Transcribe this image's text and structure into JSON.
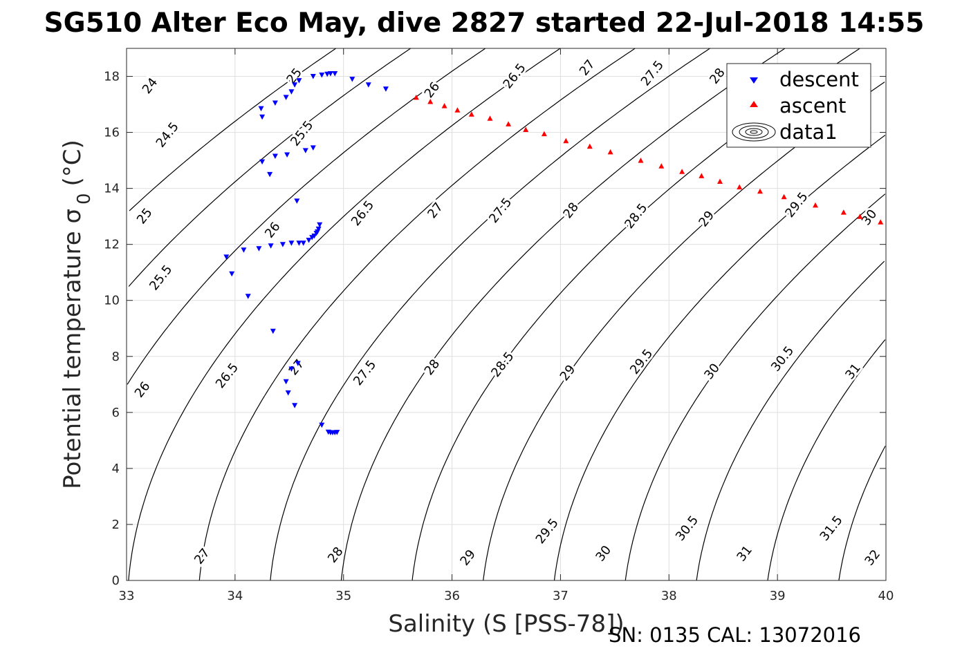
{
  "chart_data": {
    "type": "scatter",
    "title": "SG510 Alter Eco May, dive 2827 started 22-Jul-2018 14:55",
    "xlabel": "Salinity (S [PSS-78])",
    "ylabel": "Potential temperature σ 0 (°C)",
    "ylabel_parts": {
      "main": "Potential temperature σ",
      "sub": "0",
      "unit": "(°C)"
    },
    "footer": "SN: 0135  CAL: 13072016",
    "xlim": [
      33,
      40
    ],
    "ylim": [
      0,
      19
    ],
    "xticks": [
      33,
      34,
      35,
      36,
      37,
      38,
      39,
      40
    ],
    "yticks": [
      0,
      2,
      4,
      6,
      8,
      10,
      12,
      14,
      16,
      18
    ],
    "grid": true,
    "legend_position": "top-right",
    "legend": [
      {
        "label": "descent",
        "marker": "triangle-down",
        "color": "#0000ff"
      },
      {
        "label": "ascent",
        "marker": "triangle-up",
        "color": "#ff0000"
      },
      {
        "label": "data1",
        "marker": "contour",
        "color": "#000000"
      }
    ],
    "contour_levels": [
      24,
      24.5,
      25,
      25.5,
      26,
      26.5,
      27,
      27.5,
      28,
      28.5,
      29,
      29.5,
      30,
      30.5,
      31,
      31.5,
      32
    ],
    "contour_labels": [
      {
        "text": "24",
        "x": 33.22,
        "y": 17.65
      },
      {
        "text": "24.5",
        "x": 33.38,
        "y": 15.9
      },
      {
        "text": "25",
        "x": 33.17,
        "y": 13.0
      },
      {
        "text": "25",
        "x": 34.55,
        "y": 18.0
      },
      {
        "text": "25.5",
        "x": 33.32,
        "y": 10.8
      },
      {
        "text": "25.5",
        "x": 34.62,
        "y": 15.95
      },
      {
        "text": "26",
        "x": 33.15,
        "y": 6.8
      },
      {
        "text": "26",
        "x": 34.35,
        "y": 12.5
      },
      {
        "text": "26",
        "x": 35.82,
        "y": 17.5
      },
      {
        "text": "26.5",
        "x": 33.93,
        "y": 7.3
      },
      {
        "text": "26.5",
        "x": 35.18,
        "y": 13.1
      },
      {
        "text": "26.5",
        "x": 36.58,
        "y": 18.0
      },
      {
        "text": "27",
        "x": 33.7,
        "y": 0.85
      },
      {
        "text": "27",
        "x": 34.57,
        "y": 7.6
      },
      {
        "text": "27",
        "x": 35.85,
        "y": 13.2
      },
      {
        "text": "27",
        "x": 37.25,
        "y": 18.3
      },
      {
        "text": "27.5",
        "x": 35.2,
        "y": 7.4
      },
      {
        "text": "27.5",
        "x": 36.45,
        "y": 13.2
      },
      {
        "text": "27.5",
        "x": 37.85,
        "y": 18.1
      },
      {
        "text": "28",
        "x": 34.93,
        "y": 0.9
      },
      {
        "text": "28",
        "x": 35.82,
        "y": 7.6
      },
      {
        "text": "28",
        "x": 37.1,
        "y": 13.2
      },
      {
        "text": "28",
        "x": 38.45,
        "y": 18.0
      },
      {
        "text": "28.5",
        "x": 36.47,
        "y": 7.7
      },
      {
        "text": "28.5",
        "x": 37.7,
        "y": 13.0
      },
      {
        "text": "29",
        "x": 36.15,
        "y": 0.8
      },
      {
        "text": "29",
        "x": 37.07,
        "y": 7.4
      },
      {
        "text": "29",
        "x": 38.35,
        "y": 12.9
      },
      {
        "text": "29.5",
        "x": 36.88,
        "y": 1.75
      },
      {
        "text": "29.5",
        "x": 37.75,
        "y": 7.8
      },
      {
        "text": "29.5",
        "x": 39.18,
        "y": 13.4
      },
      {
        "text": "30",
        "x": 37.4,
        "y": 0.95
      },
      {
        "text": "30",
        "x": 38.4,
        "y": 7.45
      },
      {
        "text": "30",
        "x": 39.85,
        "y": 12.95
      },
      {
        "text": "30.5",
        "x": 38.17,
        "y": 1.85
      },
      {
        "text": "30.5",
        "x": 39.05,
        "y": 7.9
      },
      {
        "text": "31",
        "x": 38.7,
        "y": 0.95
      },
      {
        "text": "31",
        "x": 39.7,
        "y": 7.45
      },
      {
        "text": "31.5",
        "x": 39.5,
        "y": 1.85
      },
      {
        "text": "32",
        "x": 39.88,
        "y": 0.8
      }
    ],
    "series": [
      {
        "name": "descent",
        "marker": "triangle-down",
        "color": "#0000ff",
        "points": [
          [
            34.55,
            17.7
          ],
          [
            34.59,
            17.85
          ],
          [
            34.72,
            18.0
          ],
          [
            34.8,
            18.05
          ],
          [
            34.85,
            18.08
          ],
          [
            34.88,
            18.1
          ],
          [
            34.92,
            18.1
          ],
          [
            35.08,
            17.9
          ],
          [
            35.23,
            17.7
          ],
          [
            35.39,
            17.55
          ],
          [
            34.52,
            17.45
          ],
          [
            34.47,
            17.25
          ],
          [
            34.37,
            17.05
          ],
          [
            34.24,
            16.85
          ],
          [
            34.25,
            16.55
          ],
          [
            34.72,
            15.45
          ],
          [
            34.65,
            15.35
          ],
          [
            34.48,
            15.2
          ],
          [
            34.37,
            15.15
          ],
          [
            34.25,
            14.95
          ],
          [
            34.32,
            14.5
          ],
          [
            34.57,
            13.55
          ],
          [
            34.78,
            12.7
          ],
          [
            34.77,
            12.55
          ],
          [
            34.76,
            12.45
          ],
          [
            34.75,
            12.4
          ],
          [
            34.73,
            12.3
          ],
          [
            34.71,
            12.25
          ],
          [
            34.68,
            12.15
          ],
          [
            34.63,
            12.05
          ],
          [
            34.59,
            12.05
          ],
          [
            34.52,
            12.05
          ],
          [
            34.44,
            12.0
          ],
          [
            34.33,
            11.95
          ],
          [
            34.22,
            11.85
          ],
          [
            34.08,
            11.8
          ],
          [
            33.92,
            11.55
          ],
          [
            33.97,
            10.95
          ],
          [
            34.12,
            10.15
          ],
          [
            34.35,
            8.9
          ],
          [
            34.58,
            7.75
          ],
          [
            34.52,
            7.55
          ],
          [
            34.47,
            7.1
          ],
          [
            34.49,
            6.7
          ],
          [
            34.55,
            6.25
          ],
          [
            34.8,
            5.55
          ],
          [
            34.86,
            5.3
          ],
          [
            34.88,
            5.28
          ],
          [
            34.9,
            5.28
          ],
          [
            34.92,
            5.28
          ],
          [
            34.94,
            5.29
          ]
        ]
      },
      {
        "name": "ascent",
        "marker": "triangle-up",
        "color": "#ff0000",
        "points": [
          [
            35.67,
            17.25
          ],
          [
            35.8,
            17.1
          ],
          [
            35.93,
            16.95
          ],
          [
            36.05,
            16.8
          ],
          [
            36.18,
            16.65
          ],
          [
            36.35,
            16.5
          ],
          [
            36.52,
            16.3
          ],
          [
            36.68,
            16.1
          ],
          [
            36.85,
            15.95
          ],
          [
            37.05,
            15.7
          ],
          [
            37.27,
            15.5
          ],
          [
            37.46,
            15.3
          ],
          [
            37.74,
            15.0
          ],
          [
            37.93,
            14.8
          ],
          [
            38.12,
            14.6
          ],
          [
            38.3,
            14.45
          ],
          [
            38.47,
            14.25
          ],
          [
            38.65,
            14.05
          ],
          [
            38.84,
            13.9
          ],
          [
            39.06,
            13.7
          ],
          [
            39.35,
            13.4
          ],
          [
            39.61,
            13.15
          ],
          [
            39.76,
            13.0
          ],
          [
            39.95,
            12.8
          ]
        ]
      }
    ]
  }
}
